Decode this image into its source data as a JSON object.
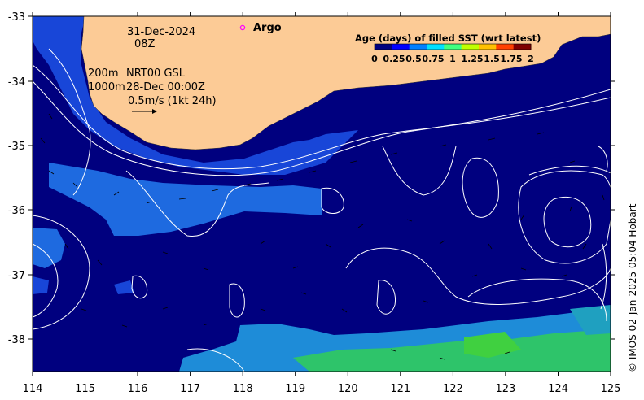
{
  "map": {
    "date": "31-Dec-2024",
    "time": "08Z",
    "iso_200m_label": "200m",
    "iso_1000m_label": "1000m",
    "product_label": "NRT00 GSL",
    "product_time": "28-Dec 00:00Z",
    "vector_scale_label": "0.5m/s (1kt 24h)",
    "argo_label": "Argo",
    "legend_title": "Age (days) of filled SST (wrt latest)",
    "legend_ticks": [
      "0",
      "0.25",
      "0.5",
      "0.75",
      "1",
      "1.25",
      "1.5",
      "1.75",
      "2"
    ],
    "legend_colors": [
      "#00007f",
      "#0000ff",
      "#0080ff",
      "#00e0ff",
      "#40ff80",
      "#c0ff00",
      "#ffc000",
      "#ff4000",
      "#800000"
    ],
    "credit": "© IMOS 02-Jan-2025 05:04 Hobart",
    "x_ticks": [
      "114",
      "115",
      "116",
      "117",
      "118",
      "119",
      "120",
      "121",
      "122",
      "123",
      "124",
      "125"
    ],
    "y_ticks": [
      "-33",
      "-34",
      "-35",
      "-36",
      "-37",
      "-38"
    ],
    "colors": {
      "land": "#fccb96",
      "ocean_age0": "#00007f",
      "fill_age_low": "#1846d8",
      "fill_age_mid": "#1e8cd8",
      "fill_age_high": "#2ec46a",
      "argo_marker": "#ff00ff"
    }
  }
}
